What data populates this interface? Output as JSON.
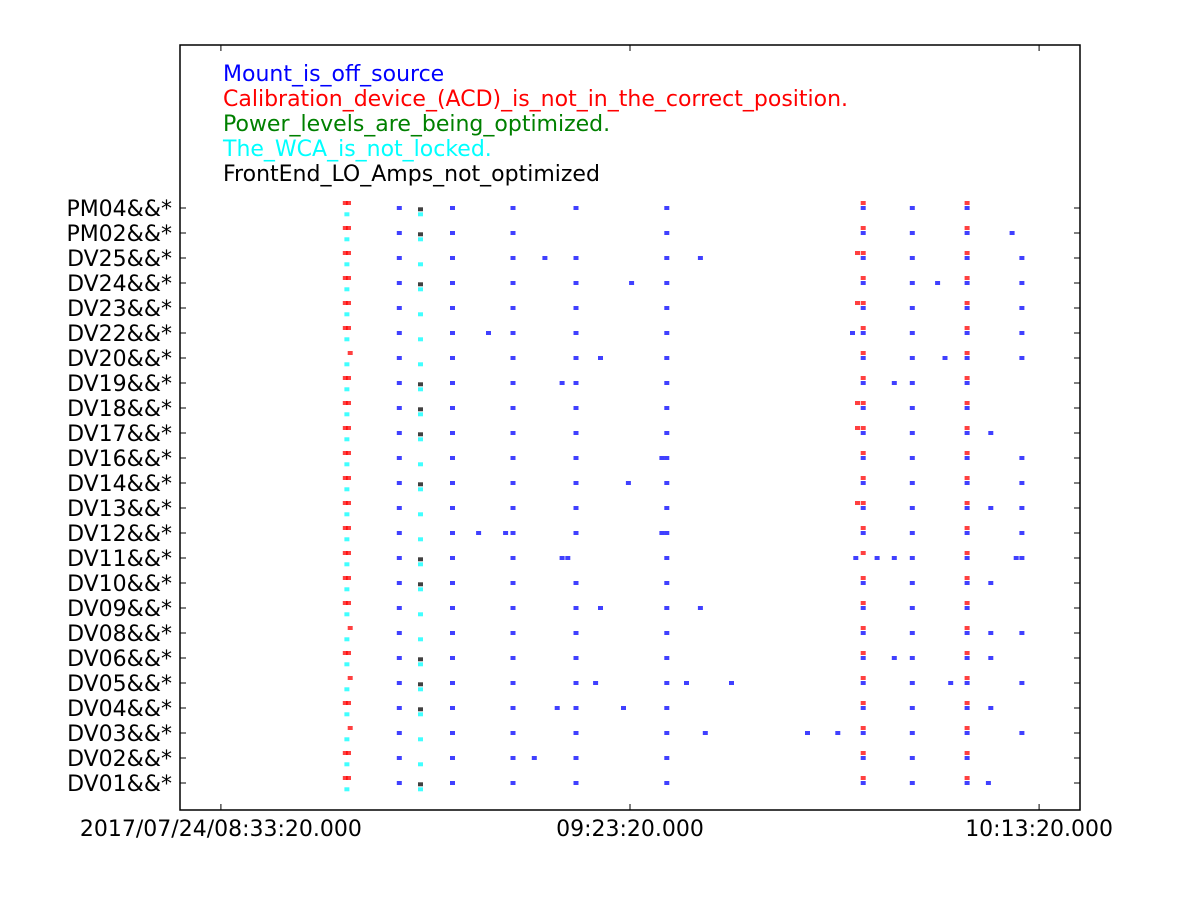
{
  "chart_data": {
    "type": "scatter",
    "title": "",
    "xlabel": "",
    "ylabel": "",
    "x_tick_labels": [
      "2017/07/24/08:33:20.000",
      "09:23:20.000",
      "10:13:20.000"
    ],
    "categories": [
      "DV01&&*",
      "DV02&&*",
      "DV03&&*",
      "DV04&&*",
      "DV05&&*",
      "DV06&&*",
      "DV08&&*",
      "DV09&&*",
      "DV10&&*",
      "DV11&&*",
      "DV12&&*",
      "DV13&&*",
      "DV14&&*",
      "DV16&&*",
      "DV17&&*",
      "DV18&&*",
      "DV19&&*",
      "DV20&&*",
      "DV22&&*",
      "DV23&&*",
      "DV24&&*",
      "DV25&&*",
      "PM02&&*",
      "PM04&&*"
    ],
    "x_unit": "minutes after 08:33:20 on 2017/07/24",
    "xlim": [
      -5,
      105
    ],
    "legend_placement": "top-left (inside)",
    "grid": false,
    "series": [
      {
        "name": "Mount_is_off_source",
        "color": "#0000ff",
        "marker_offset": 0,
        "points_by_row": [
          [
            21.8,
            28.3,
            35.7,
            43.4,
            54.5,
            78.5,
            84.5,
            91.2,
            93.8
          ],
          [
            21.8,
            28.3,
            35.7,
            38.3,
            43.4,
            54.5,
            78.5,
            84.5,
            91.2
          ],
          [
            21.8,
            28.3,
            35.7,
            43.4,
            54.5,
            59.2,
            71.7,
            75.4,
            78.5,
            84.5,
            91.2,
            97.9
          ],
          [
            21.8,
            28.3,
            35.7,
            41.1,
            43.4,
            49.2,
            54.5,
            78.5,
            84.5,
            91.2,
            94.1
          ],
          [
            21.8,
            28.3,
            35.7,
            43.4,
            45.8,
            54.5,
            56.9,
            62.4,
            78.5,
            84.5,
            89.2,
            91.2,
            97.9
          ],
          [
            21.8,
            28.3,
            35.7,
            43.4,
            54.5,
            78.5,
            82.3,
            84.5,
            91.2,
            94.1
          ],
          [
            21.8,
            28.3,
            35.7,
            43.4,
            54.5,
            78.5,
            84.5,
            91.2,
            94.1,
            97.9
          ],
          [
            21.8,
            28.3,
            35.7,
            43.4,
            46.4,
            54.5,
            58.6,
            78.5,
            84.5,
            91.2
          ],
          [
            21.8,
            28.3,
            35.7,
            43.4,
            54.5,
            78.5,
            84.5,
            91.2,
            94.1
          ],
          [
            21.8,
            28.3,
            35.7,
            41.7,
            42.4,
            54.5,
            77.6,
            80.2,
            82.3,
            84.5,
            91.2,
            97.2,
            97.9
          ],
          [
            21.8,
            28.3,
            31.5,
            34.8,
            35.7,
            43.4,
            53.9,
            54.5,
            78.5,
            84.5,
            91.2,
            97.9
          ],
          [
            21.8,
            28.3,
            35.7,
            43.4,
            54.5,
            78.5,
            84.5,
            91.2,
            94.1,
            97.9
          ],
          [
            21.8,
            28.3,
            35.7,
            43.4,
            49.8,
            54.5,
            78.5,
            84.5,
            91.2,
            97.9
          ],
          [
            21.8,
            28.3,
            35.7,
            43.4,
            53.9,
            54.5,
            78.5,
            84.5,
            91.2,
            97.9
          ],
          [
            21.8,
            28.3,
            35.7,
            43.4,
            54.5,
            78.5,
            84.5,
            91.2,
            94.1
          ],
          [
            21.8,
            28.3,
            35.7,
            43.4,
            54.5,
            78.5,
            84.5,
            91.2
          ],
          [
            21.8,
            28.3,
            35.7,
            41.7,
            43.4,
            54.5,
            78.5,
            82.3,
            84.5,
            91.2
          ],
          [
            21.8,
            28.3,
            35.7,
            43.4,
            46.4,
            54.5,
            78.5,
            84.5,
            88.5,
            91.2,
            97.9
          ],
          [
            21.8,
            28.3,
            35.7,
            32.7,
            43.4,
            54.5,
            77.2,
            78.5,
            84.5,
            91.2,
            97.9
          ],
          [
            21.8,
            28.3,
            35.7,
            43.4,
            54.5,
            78.5,
            84.5,
            91.2,
            97.9
          ],
          [
            21.8,
            28.3,
            35.7,
            43.4,
            50.2,
            54.5,
            78.5,
            84.5,
            87.6,
            91.2,
            97.9
          ],
          [
            21.8,
            28.3,
            35.7,
            39.6,
            43.4,
            54.5,
            58.6,
            78.5,
            84.5,
            91.2,
            97.9
          ],
          [
            21.8,
            28.3,
            35.7,
            54.5,
            78.5,
            84.5,
            91.2,
            96.7
          ],
          [
            21.8,
            28.3,
            35.7,
            43.4,
            54.5,
            78.5,
            84.5,
            91.2
          ]
        ]
      },
      {
        "name": "Calibration_device_(ACD)_is_not_in_the_correct_position.",
        "color": "#ff0000",
        "marker_offset": -0.2,
        "points_by_row": [
          [
            15.2,
            15.6,
            78.5,
            91.2
          ],
          [
            15.2,
            15.6,
            78.5,
            91.2
          ],
          [
            15.8,
            78.5,
            91.2
          ],
          [
            15.2,
            15.6,
            78.5,
            91.2
          ],
          [
            15.8,
            78.5,
            91.2
          ],
          [
            15.2,
            15.6,
            78.5,
            91.2
          ],
          [
            15.8,
            78.5,
            91.2
          ],
          [
            15.2,
            15.6,
            78.5,
            91.2
          ],
          [
            15.2,
            15.6,
            78.5,
            91.2
          ],
          [
            15.2,
            15.6,
            78.5,
            91.2
          ],
          [
            15.2,
            15.6,
            78.5,
            91.2
          ],
          [
            15.2,
            15.6,
            77.8,
            78.5,
            91.2
          ],
          [
            15.2,
            15.6,
            78.5,
            91.2
          ],
          [
            15.2,
            15.6,
            78.5,
            91.2
          ],
          [
            15.2,
            15.6,
            77.8,
            78.5,
            91.2
          ],
          [
            15.2,
            15.6,
            77.8,
            78.5,
            91.2
          ],
          [
            15.2,
            15.6,
            78.5,
            91.2
          ],
          [
            15.8,
            78.5,
            91.2
          ],
          [
            15.2,
            15.6,
            78.5,
            91.2
          ],
          [
            15.2,
            15.6,
            77.8,
            78.5,
            91.2
          ],
          [
            15.2,
            15.6,
            78.5,
            91.2
          ],
          [
            15.2,
            15.6,
            77.8,
            78.5,
            91.2
          ],
          [
            15.2,
            15.6,
            78.5,
            91.2
          ],
          [
            15.2,
            15.6,
            78.5,
            91.2
          ]
        ]
      },
      {
        "name": "Power_levels_are_being_optimized.",
        "color": "#008000",
        "marker_offset": 0,
        "points_by_row": [
          [],
          [],
          [],
          [],
          [],
          [],
          [],
          [],
          [],
          [],
          [],
          [],
          [],
          [],
          [],
          [],
          [],
          [],
          [],
          [],
          [],
          [],
          [],
          []
        ]
      },
      {
        "name": "The_WCA_is_not_locked.",
        "color": "#00ffff",
        "marker_offset": 0.25,
        "points_by_row": [
          [
            15.4,
            24.4
          ],
          [
            15.4,
            24.4
          ],
          [
            15.4,
            24.4
          ],
          [
            15.4,
            24.4
          ],
          [
            15.4,
            24.4
          ],
          [
            15.4,
            24.4
          ],
          [
            15.4,
            24.4
          ],
          [
            15.4,
            24.4
          ],
          [
            15.4,
            24.4
          ],
          [
            15.4,
            24.4
          ],
          [
            15.4,
            24.4
          ],
          [
            15.4,
            24.4
          ],
          [
            15.4,
            24.4
          ],
          [
            15.4,
            24.4
          ],
          [
            15.4,
            24.4
          ],
          [
            15.4,
            24.4
          ],
          [
            15.4,
            24.4
          ],
          [
            15.4,
            24.4
          ],
          [
            15.4,
            24.4
          ],
          [
            15.4,
            24.4
          ],
          [
            15.4,
            24.4
          ],
          [
            15.4,
            24.4
          ],
          [
            15.4,
            24.4
          ],
          [
            15.4,
            24.4
          ]
        ]
      },
      {
        "name": "FrontEnd_LO_Amps_not_optimized",
        "color": "#000000",
        "marker_offset": 0.05,
        "points_by_row": [
          [
            24.4
          ],
          [],
          [],
          [
            24.4
          ],
          [
            24.4
          ],
          [
            24.4
          ],
          [],
          [],
          [
            24.4
          ],
          [
            24.4
          ],
          [],
          [],
          [
            24.4
          ],
          [],
          [
            24.4
          ],
          [
            24.4
          ],
          [
            24.4
          ],
          [],
          [],
          [],
          [
            24.4
          ],
          [],
          [
            24.4
          ],
          [
            24.4
          ]
        ]
      }
    ]
  }
}
